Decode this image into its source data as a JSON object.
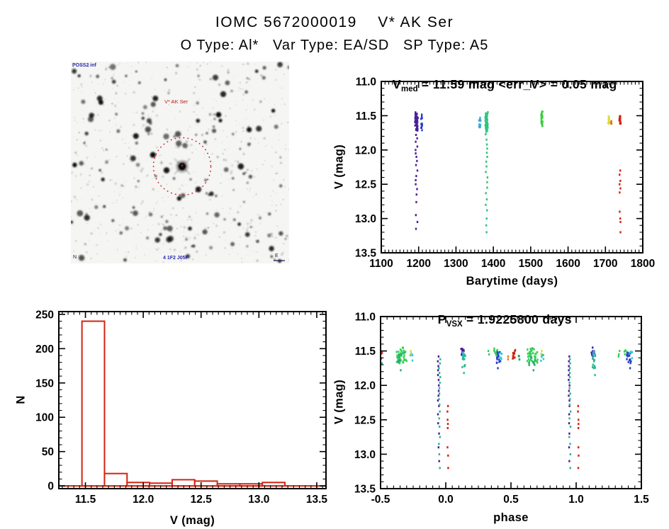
{
  "header": {
    "title": "IOMC 5672000019    V* AK Ser",
    "subtitle": "O Type: Al*   Var Type: EA/SD   SP Type: A5"
  },
  "finder_chart": {
    "target_label": "V* AK Ser",
    "survey_label": "POSS2 inf",
    "compass_n": "N",
    "scale_e": "E",
    "bottom_caption": "4 1F2 J05F",
    "circle_color": "#c42020"
  },
  "chart_data": [
    {
      "id": "barytime",
      "type": "scatter",
      "title": {
        "prefix": "V",
        "sub": "med",
        "rest": " = 11.59 mag <err_V> = 0.05 mag"
      },
      "xlabel": "Barytime (days)",
      "ylabel": "V (mag)",
      "xlim": [
        1100,
        1800
      ],
      "ylim_top_bottom": [
        11.0,
        13.5
      ],
      "xticks": [
        1100,
        1200,
        1300,
        1400,
        1500,
        1600,
        1700,
        1800
      ],
      "xtick_labels": [
        "1100",
        "1200",
        "1300",
        "1400",
        "1500",
        "1600",
        "1700",
        "1800"
      ],
      "yticks": [
        11.0,
        11.5,
        12.0,
        12.5,
        13.0,
        13.5
      ],
      "ytick_labels": [
        "11.0",
        "11.5",
        "12.0",
        "12.5",
        "13.0",
        "13.5"
      ],
      "xminor": 10,
      "yminor": 0.1,
      "clusters": [
        {
          "x": 1194,
          "dx": 4,
          "color": "#4a1f96",
          "band": [
            11.45,
            11.72,
            42
          ],
          "ys": [
            11.78,
            11.83,
            11.88,
            11.95,
            12.0,
            12.05,
            12.1,
            12.16,
            12.22,
            12.3,
            12.38,
            12.44,
            12.5,
            12.57,
            12.65,
            12.76,
            12.95,
            13.05,
            13.15
          ]
        },
        {
          "x": 1208,
          "dx": 2,
          "color": "#2440cc",
          "band": [
            11.48,
            11.72,
            14
          ]
        },
        {
          "x": 1364,
          "dx": 2.5,
          "color": "#38a8dc",
          "band": [
            11.53,
            11.67,
            12
          ]
        },
        {
          "x": 1382,
          "dx": 3.5,
          "color": "#2ec47e",
          "band": [
            11.44,
            11.78,
            48
          ],
          "ys": [
            11.85,
            11.92,
            11.98,
            12.04,
            12.1,
            12.17,
            12.24,
            12.32,
            12.4,
            12.47,
            12.55,
            12.63,
            12.72,
            12.8,
            12.88,
            13.0,
            13.1,
            13.2
          ]
        },
        {
          "x": 1530,
          "dx": 2,
          "color": "#3ecc3e",
          "band": [
            11.44,
            11.66,
            26
          ]
        },
        {
          "x": 1709,
          "dx": 2.5,
          "color": "#d8dc3c",
          "band": [
            11.5,
            11.62,
            12
          ]
        },
        {
          "x": 1716,
          "dx": 1.5,
          "color": "#e07818",
          "band": [
            11.58,
            11.64,
            4
          ]
        },
        {
          "x": 1739,
          "dx": 2,
          "color": "#d42310",
          "band": [
            11.5,
            11.64,
            22
          ],
          "ys": [
            12.3,
            12.36,
            12.45,
            12.5,
            12.56,
            12.62,
            12.9,
            13.0,
            13.05,
            13.2
          ]
        }
      ]
    },
    {
      "id": "hist",
      "type": "bar",
      "xlabel": "V (mag)",
      "ylabel": "N",
      "xlim": [
        11.27,
        13.58
      ],
      "ylim_top_bottom": [
        254,
        -4
      ],
      "xticks": [
        11.5,
        12.0,
        12.5,
        13.0,
        13.5
      ],
      "xtick_labels": [
        "11.5",
        "12.0",
        "12.5",
        "13.0",
        "13.5"
      ],
      "yticks": [
        0,
        50,
        100,
        150,
        200,
        250
      ],
      "ytick_labels": [
        "0",
        "50",
        "100",
        "150",
        "200",
        "250"
      ],
      "xminor": 0.05,
      "yminor": 10,
      "bin_start": 11.47,
      "bin_width": 0.195,
      "counts": [
        240,
        18,
        5,
        4,
        9,
        7,
        3,
        3,
        5
      ],
      "bar_color": "#d42310"
    },
    {
      "id": "phase",
      "type": "scatter",
      "title": {
        "prefix": "P",
        "sub": "VSX",
        "rest": " = 1.9225800 days"
      },
      "xlabel": "phase",
      "ylabel": "V (mag)",
      "xlim": [
        -0.5,
        1.5
      ],
      "ylim_top_bottom": [
        11.0,
        13.5
      ],
      "xticks": [
        -0.5,
        0.0,
        0.5,
        1.0,
        1.5
      ],
      "xtick_labels": [
        "-0.5",
        "0.0",
        "0.5",
        "1.0",
        "1.5"
      ],
      "yticks": [
        11.0,
        11.5,
        12.0,
        12.5,
        13.0,
        13.5
      ],
      "ytick_labels": [
        "11.0",
        "11.5",
        "12.0",
        "12.5",
        "13.0",
        "13.5"
      ],
      "xminor": 0.05,
      "yminor": 0.1,
      "clusters": [
        {
          "x": -0.5,
          "dx": 0.012,
          "color": "#d42310",
          "band": [
            11.48,
            11.63,
            10
          ]
        },
        {
          "x": -0.49,
          "dx": 0.004,
          "color": "#2aa876",
          "ys": [
            11.68
          ]
        },
        {
          "x": -0.34,
          "dx": 0.04,
          "color": "#35d055",
          "band": [
            11.45,
            11.68,
            36
          ]
        },
        {
          "x": -0.345,
          "dx": 0.03,
          "color": "#2aa876",
          "band": [
            11.52,
            11.72,
            8
          ],
          "ys": [
            11.78
          ]
        },
        {
          "x": -0.262,
          "dx": 0.01,
          "color": "#38c8d8",
          "band": [
            11.52,
            11.65,
            6
          ]
        },
        {
          "x": -0.268,
          "dx": 0.006,
          "color": "#d8dc3c",
          "ys": [
            11.5,
            11.54
          ]
        },
        {
          "x": -0.055,
          "dx": 0.008,
          "color": "#4a1f96",
          "ys": [
            11.58,
            11.65,
            11.72,
            11.78,
            11.85,
            11.92,
            12.0,
            12.08,
            12.15,
            12.22,
            12.3,
            12.42,
            12.55,
            12.7,
            12.9,
            13.1
          ]
        },
        {
          "x": -0.048,
          "dx": 0.008,
          "color": "#2ab890",
          "ys": [
            11.62,
            11.68,
            11.75,
            11.82,
            11.88,
            11.96,
            12.04,
            12.12,
            12.2,
            12.28,
            12.38,
            12.48,
            12.6,
            12.75,
            12.85,
            13.0,
            13.2
          ]
        },
        {
          "x": 0.015,
          "dx": 0.006,
          "color": "#d42310",
          "ys": [
            12.3,
            12.38,
            12.5,
            12.56,
            12.62,
            12.9,
            13.02,
            13.2
          ]
        },
        {
          "x": 0.128,
          "dx": 0.012,
          "color": "#4a1f96",
          "band": [
            11.45,
            11.58,
            10
          ]
        },
        {
          "x": 0.138,
          "dx": 0.012,
          "color": "#2ab890",
          "band": [
            11.55,
            11.75,
            12
          ],
          "ys": [
            11.82
          ]
        },
        {
          "x": 0.135,
          "dx": 0.006,
          "color": "#38a8dc",
          "band": [
            11.5,
            11.6,
            4
          ]
        },
        {
          "x": 0.33,
          "dx": 0.006,
          "color": "#35d055",
          "ys": [
            11.5,
            11.55
          ]
        },
        {
          "x": 0.385,
          "dx": 0.015,
          "color": "#35d055",
          "band": [
            11.45,
            11.58,
            10
          ]
        },
        {
          "x": 0.405,
          "dx": 0.018,
          "color": "#2440cc",
          "band": [
            11.5,
            11.68,
            16
          ],
          "ys": [
            11.75
          ]
        },
        {
          "x": 0.425,
          "dx": 0.008,
          "color": "#38c8d8",
          "band": [
            11.5,
            11.62,
            5
          ]
        },
        {
          "x": 0.475,
          "dx": 0.005,
          "color": "#e07818",
          "ys": [
            11.58,
            11.62
          ]
        },
        {
          "x": 0.525,
          "dx": 0.012,
          "color": "#d42310",
          "band": [
            11.48,
            11.62,
            10
          ]
        },
        {
          "x": 0.558,
          "dx": 0.008,
          "color": "#2aa876",
          "band": [
            11.55,
            11.66,
            5
          ]
        },
        {
          "x": 0.665,
          "dx": 0.04,
          "color": "#35d055",
          "band": [
            11.45,
            11.68,
            36
          ]
        },
        {
          "x": 0.66,
          "dx": 0.03,
          "color": "#2aa876",
          "band": [
            11.52,
            11.72,
            8
          ],
          "ys": [
            11.78
          ]
        },
        {
          "x": 0.74,
          "dx": 0.01,
          "color": "#38c8d8",
          "band": [
            11.52,
            11.65,
            6
          ]
        },
        {
          "x": 0.735,
          "dx": 0.006,
          "color": "#d8dc3c",
          "ys": [
            11.5,
            11.54
          ]
        },
        {
          "x": 0.748,
          "dx": 0.004,
          "color": "#3ecc3e",
          "ys": [
            11.56
          ]
        },
        {
          "x": 0.945,
          "dx": 0.008,
          "color": "#4a1f96",
          "ys": [
            11.58,
            11.65,
            11.72,
            11.78,
            11.85,
            11.92,
            12.0,
            12.08,
            12.15,
            12.22,
            12.3,
            12.42,
            12.55,
            12.7,
            12.9,
            13.1
          ]
        },
        {
          "x": 0.952,
          "dx": 0.008,
          "color": "#2ab890",
          "ys": [
            11.62,
            11.68,
            11.75,
            11.82,
            11.88,
            11.96,
            12.04,
            12.12,
            12.2,
            12.28,
            12.38,
            12.48,
            12.6,
            12.75,
            12.85,
            13.0,
            13.2
          ]
        },
        {
          "x": 1.015,
          "dx": 0.006,
          "color": "#d42310",
          "ys": [
            12.3,
            12.38,
            12.5,
            12.56,
            12.62,
            12.9,
            13.02,
            13.2
          ]
        },
        {
          "x": 1.128,
          "dx": 0.012,
          "color": "#4a1f96",
          "band": [
            11.45,
            11.58,
            10
          ]
        },
        {
          "x": 1.138,
          "dx": 0.012,
          "color": "#2ab890",
          "band": [
            11.55,
            11.75,
            12
          ],
          "ys": [
            11.85
          ]
        },
        {
          "x": 1.135,
          "dx": 0.006,
          "color": "#38a8dc",
          "band": [
            11.5,
            11.6,
            4
          ]
        },
        {
          "x": 1.33,
          "dx": 0.008,
          "color": "#35d055",
          "ys": [
            11.5,
            11.55,
            11.58
          ]
        },
        {
          "x": 1.385,
          "dx": 0.015,
          "color": "#35d055",
          "band": [
            11.45,
            11.58,
            8
          ]
        },
        {
          "x": 1.405,
          "dx": 0.018,
          "color": "#2440cc",
          "band": [
            11.5,
            11.68,
            16
          ],
          "ys": [
            11.75
          ]
        },
        {
          "x": 1.425,
          "dx": 0.008,
          "color": "#38c8d8",
          "band": [
            11.5,
            11.62,
            5
          ]
        },
        {
          "x": 1.5,
          "dx": 0.005,
          "color": "#e07818",
          "ys": [
            11.58,
            11.62
          ]
        }
      ]
    }
  ]
}
